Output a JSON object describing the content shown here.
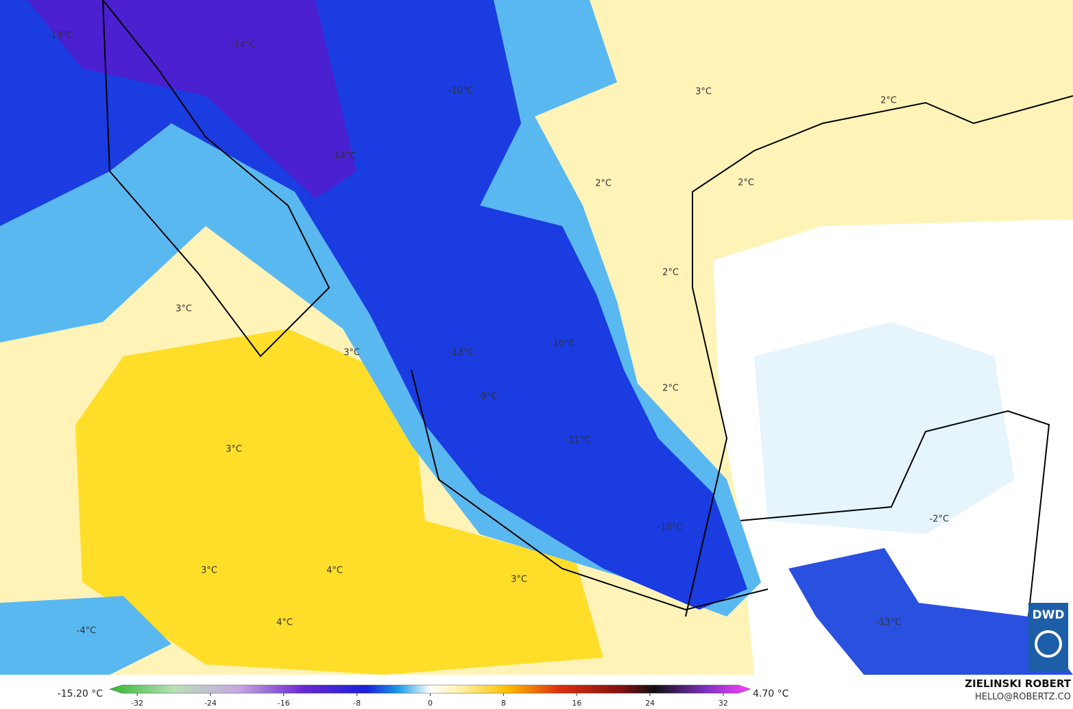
{
  "map": {
    "labels": [
      "-13°C",
      "-14°C",
      "-10°C",
      "3°C",
      "2°C",
      "-14°C",
      "2°C",
      "2°C",
      "2°C",
      "3°C",
      "-10°C",
      "-13°C",
      "3°C",
      "2°C",
      "-9°C",
      "3°C",
      "-11°C",
      "-2°C",
      "-10°C",
      "3°C",
      "4°C",
      "3°C",
      "4°C",
      "-4°C",
      "-13°C"
    ],
    "colorbar": {
      "min_label": "-15.20 °C",
      "max_label": "4.70 °C",
      "lim": [
        -35,
        35
      ],
      "ticks": [
        -32,
        -24,
        -16,
        -8,
        0,
        8,
        16,
        24,
        32
      ]
    },
    "credit": {
      "author": "ZIELINSKI ROBERT",
      "contact": "HELLO@ROBERTZ.CO",
      "logo": "DWD"
    }
  }
}
